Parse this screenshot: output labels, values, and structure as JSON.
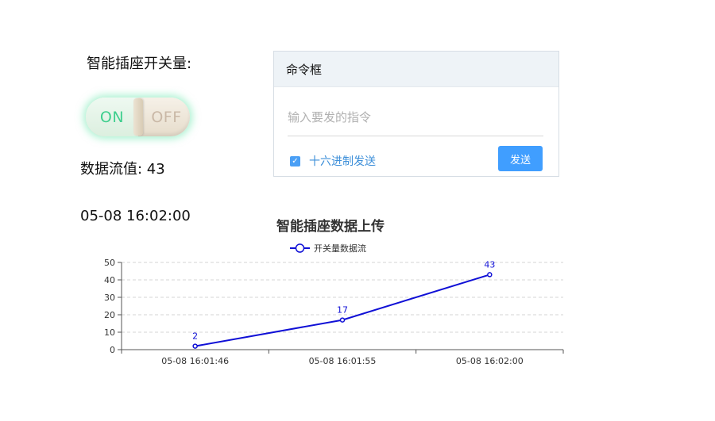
{
  "switch": {
    "label": "智能插座开关量:",
    "on_label": "ON",
    "off_label": "OFF",
    "state": "on"
  },
  "data_flow": {
    "text": "数据流值: 43"
  },
  "timestamp": "05-08 16:02:00",
  "command_box": {
    "title": "命令框",
    "input_value": "",
    "input_placeholder": "输入要发的指令",
    "hex_checkbox": {
      "label": "十六进制发送",
      "checked": true,
      "check_glyph": "✓"
    },
    "send_label": "发送"
  },
  "colors": {
    "series_line": "#1010d6",
    "button_primary": "#409eff",
    "toggle_on_text": "#3fcf8e"
  },
  "chart_data": {
    "type": "line",
    "title": "智能插座数据上传",
    "legend": [
      "开关量数据流"
    ],
    "legend_position": "top-center",
    "categories": [
      "05-08 16:01:46",
      "05-08 16:01:55",
      "05-08 16:02:00"
    ],
    "series": [
      {
        "name": "开关量数据流",
        "values": [
          2,
          17,
          43
        ],
        "labels": [
          "2",
          "17",
          "43"
        ]
      }
    ],
    "yticks": [
      "0",
      "10",
      "20",
      "30",
      "40",
      "50"
    ],
    "ylim": [
      0,
      50
    ],
    "grid": "horizontal dashed",
    "xlabel": "",
    "ylabel": ""
  }
}
